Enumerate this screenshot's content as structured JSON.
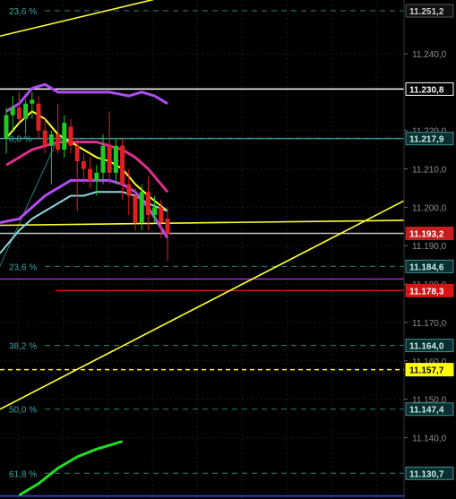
{
  "chart_data": {
    "type": "candlestick",
    "title": "",
    "xlabel": "",
    "ylabel": "",
    "ylim": [
      11124,
      11254
    ],
    "grid": true,
    "y_ticks": [
      "11.140,0",
      "11.150,0",
      "11.160,0",
      "11.170,0",
      "11.180,0",
      "11.190,0",
      "11.200,0",
      "11.210,0",
      "11.220,0",
      "11.240,0"
    ],
    "y_tick_values": [
      11140,
      11150,
      11160,
      11170,
      11180,
      11190,
      11200,
      11210,
      11220,
      11240
    ],
    "price_tags": [
      {
        "label": "11.251,2",
        "value": 11251.2,
        "bg": "#111111",
        "fg": "#cfcfcf",
        "border": "#555555"
      },
      {
        "label": "11.230,8",
        "value": 11230.8,
        "bg": "#000000",
        "fg": "#ffffff",
        "border": "#ffffff"
      },
      {
        "label": "11.217,9",
        "value": 11217.9,
        "bg": "#0d2f2f",
        "fg": "#bff3f3",
        "border": "#3a8f8f"
      },
      {
        "label": "11.193,2",
        "value": 11193.2,
        "bg": "#c41e1e",
        "fg": "#ffffff",
        "border": "#c41e1e"
      },
      {
        "label": "11.184,6",
        "value": 11184.6,
        "bg": "#0d2f2f",
        "fg": "#bff3f3",
        "border": "#3a8f8f"
      },
      {
        "label": "11.178,3",
        "value": 11178.3,
        "bg": "#d81414",
        "fg": "#ffffff",
        "border": "#d81414"
      },
      {
        "label": "11.164,0",
        "value": 11164.0,
        "bg": "#0d2f2f",
        "fg": "#bff3f3",
        "border": "#3a8f8f"
      },
      {
        "label": "11.157,7",
        "value": 11157.7,
        "bg": "#ffff00",
        "fg": "#000000",
        "border": "#ffff00"
      },
      {
        "label": "11.147,4",
        "value": 11147.4,
        "bg": "#0d2f2f",
        "fg": "#bff3f3",
        "border": "#3a8f8f"
      },
      {
        "label": "11.130,7",
        "value": 11130.7,
        "bg": "#0d2f2f",
        "fg": "#bff3f3",
        "border": "#3a8f8f"
      }
    ],
    "fib_levels": [
      {
        "label": "23,6 %",
        "value": 11251.2
      },
      {
        "label": "0,0 %",
        "value": 11217.9
      },
      {
        "label": "23,6 %",
        "value": 11184.6
      },
      {
        "label": "38,2 %",
        "value": 11164.0
      },
      {
        "label": "50,0 %",
        "value": 11147.4
      },
      {
        "label": "61,8 %",
        "value": 11130.7
      }
    ],
    "horizontal_lines": [
      {
        "value": 11230.8,
        "color": "#ffffff",
        "style": "solid"
      },
      {
        "value": 11217.9,
        "color": "#3fa3a3",
        "style": "solid"
      },
      {
        "value": 11193.2,
        "color": "#c0c0c0",
        "style": "solid"
      },
      {
        "value": 11181.3,
        "color": "#9b2fcf",
        "style": "solid"
      },
      {
        "value": 11178.3,
        "color": "#d81414",
        "style": "solid",
        "x_start_frac": 0.12
      },
      {
        "value": 11157.7,
        "color": "#ffff00",
        "style": "dashed"
      },
      {
        "value": 11124.8,
        "color": "#2b56d6",
        "style": "solid"
      }
    ],
    "trendlines": [
      {
        "name": "upper-yellow-trendline",
        "color": "#ffff30",
        "points": [
          [
            -1,
            11244.6
          ],
          [
            25,
            11255
          ]
        ]
      },
      {
        "name": "horizontal-yellow-trendline",
        "color": "#ffff30",
        "points": [
          [
            -1,
            11195.3
          ],
          [
            100,
            11196.6
          ]
        ]
      },
      {
        "name": "rising-yellow-trendline",
        "color": "#ffff30",
        "points": [
          [
            -1,
            11147.4
          ],
          [
            100,
            11201.7
          ]
        ]
      }
    ],
    "candles": [
      {
        "o": 11218,
        "h": 11226,
        "l": 11214,
        "c": 11224
      },
      {
        "o": 11224,
        "h": 11229,
        "l": 11220,
        "c": 11226
      },
      {
        "o": 11226,
        "h": 11230,
        "l": 11222,
        "c": 11223
      },
      {
        "o": 11223,
        "h": 11228,
        "l": 11219,
        "c": 11227
      },
      {
        "o": 11227,
        "h": 11230,
        "l": 11223,
        "c": 11228
      },
      {
        "o": 11227,
        "h": 11229,
        "l": 11218,
        "c": 11220
      },
      {
        "o": 11220,
        "h": 11223,
        "l": 11214,
        "c": 11216
      },
      {
        "o": 11216,
        "h": 11220,
        "l": 11206,
        "c": 11219
      },
      {
        "o": 11219,
        "h": 11227,
        "l": 11214,
        "c": 11215
      },
      {
        "o": 11215,
        "h": 11224,
        "l": 11213,
        "c": 11222
      },
      {
        "o": 11221,
        "h": 11223,
        "l": 11214,
        "c": 11216
      },
      {
        "o": 11216,
        "h": 11218,
        "l": 11199,
        "c": 11212
      },
      {
        "o": 11212,
        "h": 11214,
        "l": 11206,
        "c": 11210
      },
      {
        "o": 11210,
        "h": 11213,
        "l": 11205,
        "c": 11207
      },
      {
        "o": 11207,
        "h": 11211,
        "l": 11203,
        "c": 11209
      },
      {
        "o": 11209,
        "h": 11219,
        "l": 11206,
        "c": 11216
      },
      {
        "o": 11216,
        "h": 11225,
        "l": 11206,
        "c": 11209
      },
      {
        "o": 11209,
        "h": 11218,
        "l": 11206,
        "c": 11216
      },
      {
        "o": 11216,
        "h": 11218,
        "l": 11202,
        "c": 11206
      },
      {
        "o": 11206,
        "h": 11210,
        "l": 11198,
        "c": 11203
      },
      {
        "o": 11203,
        "h": 11205,
        "l": 11194,
        "c": 11196
      },
      {
        "o": 11196,
        "h": 11206,
        "l": 11194,
        "c": 11204
      },
      {
        "o": 11204,
        "h": 11208,
        "l": 11194,
        "c": 11198
      },
      {
        "o": 11198,
        "h": 11203,
        "l": 11196,
        "c": 11200
      },
      {
        "o": 11200,
        "h": 11202,
        "l": 11192,
        "c": 11196
      },
      {
        "o": 11197,
        "h": 11200,
        "l": 11186,
        "c": 11193
      }
    ],
    "moving_averages": [
      {
        "name": "upper-purple-band",
        "color": "#b04cf0",
        "width": 3,
        "points": [
          [
            0,
            11225
          ],
          [
            2,
            11227
          ],
          [
            4,
            11231
          ],
          [
            6,
            11232
          ],
          [
            8,
            11230
          ],
          [
            10,
            11230
          ],
          [
            13,
            11230
          ],
          [
            16,
            11230
          ],
          [
            19,
            11229
          ],
          [
            21,
            11230
          ],
          [
            23,
            11229
          ],
          [
            25,
            11227
          ]
        ]
      },
      {
        "name": "magenta-band",
        "color": "#dd2d8c",
        "width": 3,
        "points": [
          [
            0,
            11211
          ],
          [
            2,
            11213
          ],
          [
            4,
            11215
          ],
          [
            6,
            11216
          ],
          [
            8,
            11217
          ],
          [
            10,
            11217
          ],
          [
            12,
            11217
          ],
          [
            14,
            11217
          ],
          [
            16,
            11216
          ],
          [
            18,
            11215
          ],
          [
            20,
            11213
          ],
          [
            22,
            11210
          ],
          [
            25,
            11204
          ]
        ]
      },
      {
        "name": "yellow-moving-average",
        "color": "#ffff30",
        "width": 2,
        "points": [
          [
            0,
            11218
          ],
          [
            2,
            11222
          ],
          [
            4,
            11225
          ],
          [
            6,
            11223
          ],
          [
            8,
            11219
          ],
          [
            10,
            11217
          ],
          [
            12,
            11215
          ],
          [
            14,
            11213
          ],
          [
            16,
            11212
          ],
          [
            18,
            11210
          ],
          [
            20,
            11206
          ],
          [
            22,
            11203
          ],
          [
            25,
            11199
          ]
        ]
      },
      {
        "name": "cyan-moving-average",
        "color": "#8fd6e0",
        "width": 2,
        "points": [
          [
            -1,
            11188
          ],
          [
            2,
            11194
          ],
          [
            4,
            11197
          ],
          [
            6,
            11199
          ],
          [
            8,
            11201
          ],
          [
            10,
            11203
          ],
          [
            12,
            11203
          ],
          [
            14,
            11204
          ],
          [
            16,
            11204
          ],
          [
            18,
            11204
          ],
          [
            20,
            11203
          ],
          [
            22,
            11201
          ],
          [
            25,
            11199
          ]
        ]
      },
      {
        "name": "lower-purple-band",
        "color": "#b04cf0",
        "width": 3,
        "points": [
          [
            -1,
            11196
          ],
          [
            2,
            11197
          ],
          [
            4,
            11200
          ],
          [
            6,
            11203
          ],
          [
            8,
            11205
          ],
          [
            10,
            11207
          ],
          [
            12,
            11207
          ],
          [
            14,
            11207
          ],
          [
            16,
            11207
          ],
          [
            18,
            11206
          ],
          [
            20,
            11204
          ],
          [
            22,
            11200
          ],
          [
            25,
            11192
          ]
        ]
      },
      {
        "name": "green-indicator",
        "color": "#22dd22",
        "width": 3,
        "points": [
          [
            2,
            11125
          ],
          [
            5,
            11128
          ],
          [
            8,
            11132
          ],
          [
            11,
            11135
          ],
          [
            14,
            11137
          ],
          [
            16,
            11138
          ],
          [
            18,
            11139
          ]
        ]
      }
    ]
  }
}
